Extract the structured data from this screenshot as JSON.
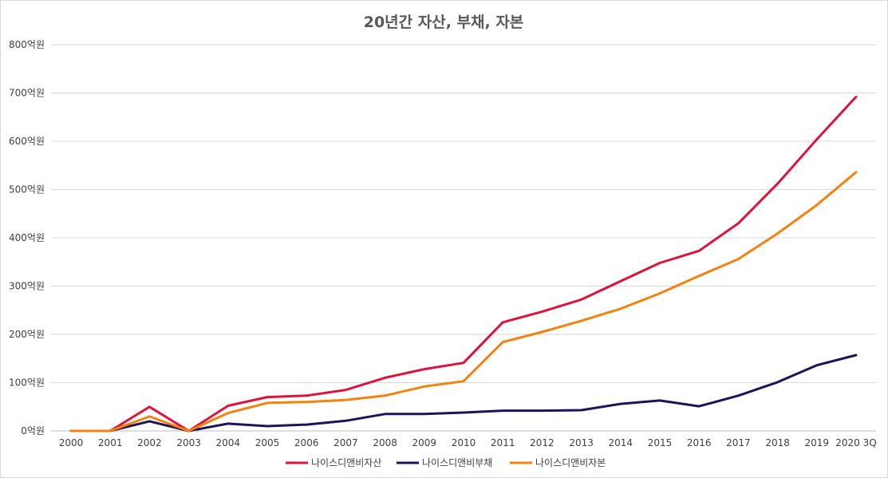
{
  "chart_data": {
    "type": "line",
    "title": "20년간 자산, 부채, 자본",
    "x": [
      "2000",
      "2001",
      "2002",
      "2003",
      "2004",
      "2005",
      "2006",
      "2007",
      "2008",
      "2009",
      "2010",
      "2011",
      "2012",
      "2013",
      "2014",
      "2015",
      "2016",
      "2017",
      "2018",
      "2019",
      "2020 3Q"
    ],
    "y_ticks": [
      "0억원",
      "100억원",
      "200억원",
      "300억원",
      "400억원",
      "500억원",
      "600억원",
      "700억원",
      "800억원"
    ],
    "ylim": [
      0,
      800
    ],
    "grid": true,
    "legend_position": "bottom",
    "series": [
      {
        "name": "나이스디앤비자산",
        "color": "#dc143c",
        "values": [
          0,
          0,
          50,
          0,
          52,
          70,
          73,
          85,
          110,
          128,
          141,
          225,
          247,
          272,
          310,
          348,
          373,
          430,
          512,
          604,
          692
        ]
      },
      {
        "name": "나이스디앤비부채",
        "color": "#1f1259",
        "values": [
          0,
          0,
          20,
          0,
          15,
          10,
          13,
          21,
          35,
          35,
          38,
          42,
          42,
          43,
          56,
          63,
          51,
          73,
          101,
          136,
          157
        ]
      },
      {
        "name": "나이스디앤비자본",
        "color": "#f5820f",
        "values": [
          0,
          0,
          30,
          0,
          37,
          58,
          60,
          64,
          73,
          92,
          103,
          184,
          205,
          228,
          253,
          285,
          321,
          356,
          409,
          468,
          536
        ]
      }
    ]
  }
}
